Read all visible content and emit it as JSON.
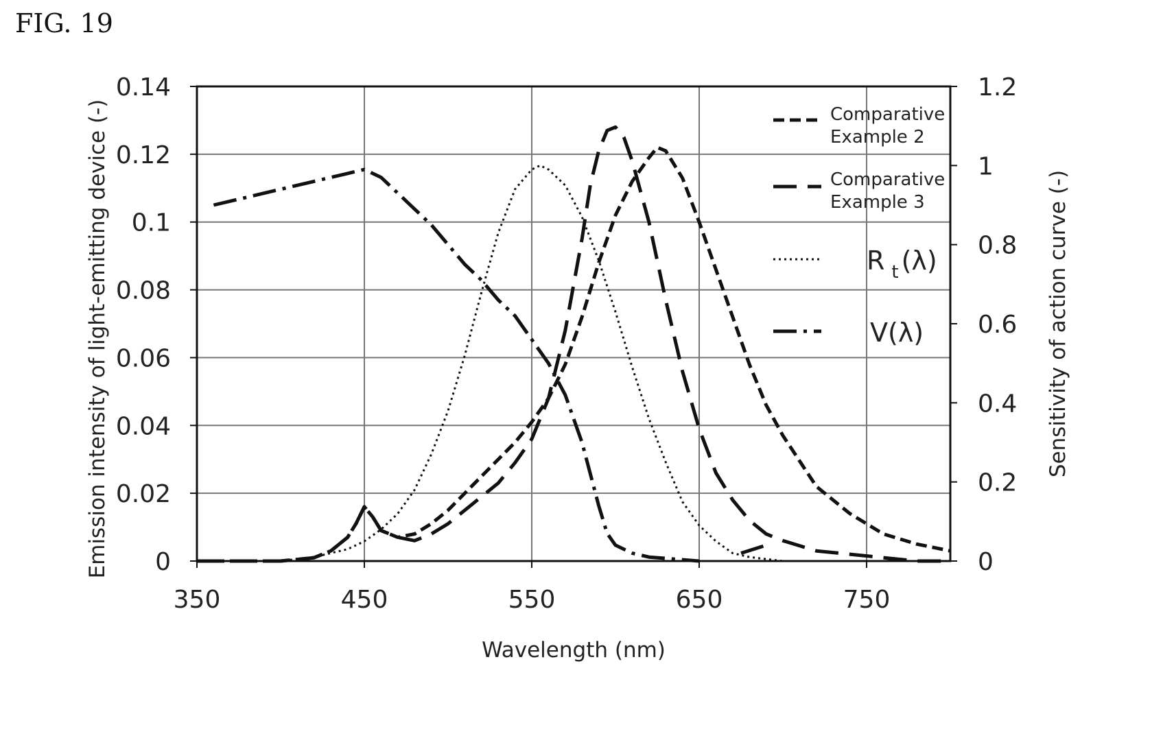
{
  "figure_label": "FIG. 19",
  "chart_data": {
    "type": "line",
    "xlabel": "Wavelength (nm)",
    "ylabel_left": "Emission intensity of light-emitting device (-)",
    "ylabel_right": "Sensitivity of action curve (-)",
    "xlim": [
      350,
      800
    ],
    "ylim_left": [
      0,
      0.14
    ],
    "ylim_right": [
      0,
      1.2
    ],
    "x_ticks": [
      "350",
      "450",
      "550",
      "650",
      "750"
    ],
    "y_left_ticks": [
      "0",
      "0.02",
      "0.04",
      "0.06",
      "0.08",
      "0.1",
      "0.12",
      "0.14"
    ],
    "y_right_ticks": [
      "0",
      "0.2",
      "0.4",
      "0.6",
      "0.8",
      "1",
      "1.2"
    ],
    "grid": true,
    "legend_position": "top-right",
    "series": [
      {
        "name_lines": [
          "Comparative",
          "Example 2"
        ],
        "axis": "left",
        "dash": "short",
        "x": [
          350,
          400,
          420,
          430,
          440,
          445,
          450,
          455,
          460,
          465,
          470,
          480,
          490,
          500,
          510,
          520,
          530,
          540,
          550,
          560,
          570,
          580,
          590,
          600,
          610,
          620,
          625,
          630,
          640,
          650,
          660,
          670,
          680,
          690,
          700,
          720,
          740,
          760,
          780,
          800
        ],
        "y": [
          0,
          0,
          0.001,
          0.003,
          0.007,
          0.011,
          0.016,
          0.013,
          0.009,
          0.008,
          0.007,
          0.008,
          0.011,
          0.015,
          0.02,
          0.025,
          0.03,
          0.035,
          0.041,
          0.048,
          0.058,
          0.072,
          0.088,
          0.102,
          0.112,
          0.119,
          0.122,
          0.121,
          0.113,
          0.1,
          0.086,
          0.072,
          0.058,
          0.046,
          0.037,
          0.022,
          0.014,
          0.008,
          0.005,
          0.003
        ]
      },
      {
        "name_lines": [
          "Comparative",
          "Example 3"
        ],
        "axis": "left",
        "dash": "long",
        "x": [
          350,
          400,
          420,
          430,
          440,
          445,
          450,
          455,
          460,
          470,
          480,
          490,
          500,
          510,
          520,
          530,
          540,
          550,
          560,
          570,
          580,
          585,
          590,
          595,
          600,
          605,
          610,
          620,
          630,
          640,
          650,
          660,
          670,
          680,
          690,
          700,
          720,
          740,
          760,
          780,
          800
        ],
        "y": [
          0,
          0,
          0.001,
          0.003,
          0.007,
          0.011,
          0.016,
          0.013,
          0.009,
          0.007,
          0.006,
          0.008,
          0.011,
          0.015,
          0.019,
          0.023,
          0.029,
          0.036,
          0.048,
          0.068,
          0.095,
          0.111,
          0.121,
          0.127,
          0.128,
          0.125,
          0.118,
          0.1,
          0.077,
          0.056,
          0.039,
          0.026,
          0.018,
          0.012,
          0.008,
          0.006,
          0.003,
          0.002,
          0.001,
          0,
          0
        ]
      },
      {
        "name_text": "R",
        "name_sub": "t",
        "name_suffix": "(λ)",
        "axis": "right",
        "dash": "dot",
        "x": [
          350,
          400,
          420,
          440,
          450,
          460,
          470,
          480,
          490,
          500,
          510,
          520,
          530,
          540,
          550,
          555,
          560,
          570,
          580,
          590,
          600,
          610,
          620,
          630,
          640,
          650,
          660,
          670,
          680,
          700,
          750,
          800
        ],
        "y": [
          0,
          0,
          0.01,
          0.03,
          0.05,
          0.08,
          0.12,
          0.18,
          0.27,
          0.38,
          0.52,
          0.68,
          0.83,
          0.94,
          0.99,
          1.0,
          0.99,
          0.95,
          0.87,
          0.76,
          0.63,
          0.49,
          0.36,
          0.25,
          0.15,
          0.09,
          0.05,
          0.02,
          0.01,
          0,
          0,
          0
        ]
      },
      {
        "name_text": "V(λ)",
        "axis": "right",
        "dash": "dashdot",
        "x": [
          360,
          380,
          400,
          420,
          440,
          450,
          460,
          470,
          480,
          490,
          500,
          510,
          520,
          530,
          540,
          550,
          560,
          570,
          580,
          585,
          590,
          595,
          600,
          610,
          620,
          650
        ],
        "y": [
          0.9,
          0.92,
          0.94,
          0.96,
          0.98,
          0.99,
          0.97,
          0.93,
          0.89,
          0.85,
          0.8,
          0.75,
          0.71,
          0.66,
          0.62,
          0.56,
          0.5,
          0.42,
          0.3,
          0.22,
          0.14,
          0.07,
          0.04,
          0.02,
          0.01,
          0
        ]
      },
      {
        "axis": "right",
        "dash": "dashdot",
        "x": [
          675,
          690
        ],
        "y": [
          0.02,
          0.04
        ]
      }
    ]
  }
}
